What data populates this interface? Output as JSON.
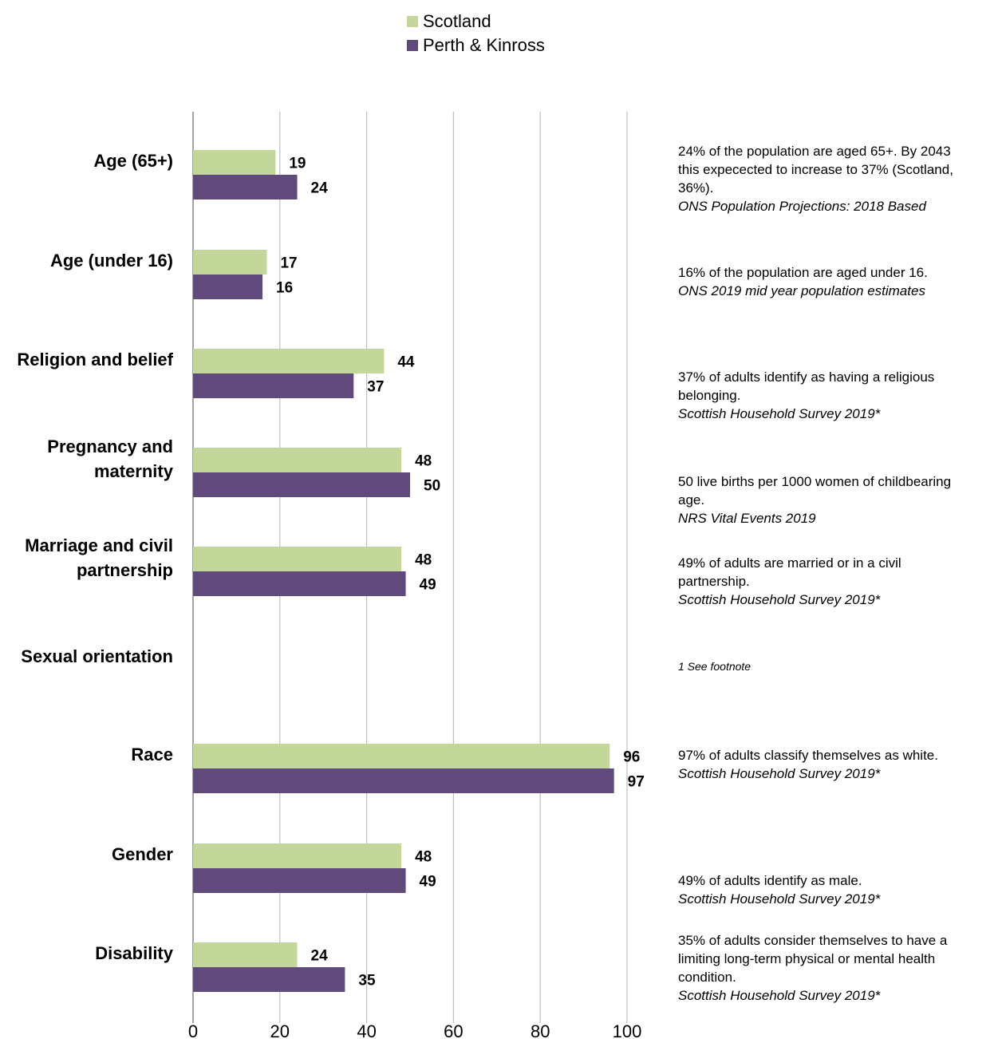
{
  "chart_data": {
    "type": "bar",
    "orientation": "horizontal",
    "categories": [
      "Age (65+)",
      "Age (under 16)",
      "Religion and belief",
      "Pregnancy and maternity",
      "Marriage and civil partnership",
      "Sexual orientation",
      "Race",
      "Gender",
      "Disability"
    ],
    "series": [
      {
        "name": "Scotland",
        "color": "#c4d79b",
        "values": [
          19,
          17,
          44,
          48,
          48,
          null,
          96,
          48,
          24
        ]
      },
      {
        "name": "Perth & Kinross",
        "color": "#604a7b",
        "values": [
          24,
          16,
          37,
          50,
          49,
          null,
          97,
          49,
          35
        ]
      }
    ],
    "xlim": [
      0,
      100
    ],
    "xticks": [
      0,
      20,
      40,
      60,
      80,
      100
    ],
    "grid": true,
    "legend": "top-center",
    "title": "",
    "xlabel": "",
    "ylabel": ""
  },
  "category_labels": [
    [
      "Age (65+)"
    ],
    [
      "Age (under 16)"
    ],
    [
      "Religion and belief"
    ],
    [
      "Pregnancy and",
      "maternity"
    ],
    [
      "Marriage and civil",
      "partnership"
    ],
    [
      "Sexual orientation"
    ],
    [
      "Race"
    ],
    [
      "Gender"
    ],
    [
      "Disability"
    ]
  ],
  "notes": [
    {
      "lines": [
        "24% of the population are aged 65+. By 2043",
        "this expecected to increase to 37% (Scotland,",
        "36%)."
      ],
      "source": " ONS Population Projections: 2018 Based"
    },
    {
      "lines": [
        "16% of the population are aged under 16."
      ],
      "source": " ONS 2019 mid year population estimates"
    },
    {
      "lines": [
        "37% of adults identify as having a religious",
        "belonging."
      ],
      "source": "Scottish Household Survey 2019*"
    },
    {
      "lines": [
        "50 live births per 1000 women of childbearing",
        "age."
      ],
      "source": "NRS Vital Events 2019"
    },
    {
      "lines": [
        "49% of adults are married or in a civil",
        "partnership."
      ],
      "source": "Scottish Household Survey 2019*"
    },
    {
      "lines": [],
      "source": "1 See footnote",
      "small": true
    },
    {
      "lines": [
        "97% of adults classify themselves as white."
      ],
      "source": "Scottish Household Survey 2019*"
    },
    {
      "lines": [
        "49% of adults identify as male."
      ],
      "source": "Scottish Household Survey 2019*"
    },
    {
      "lines": [
        "35% of adults consider themselves to have a",
        "limiting long-term physical or mental health",
        "condition."
      ],
      "source": "Scottish Household Survey 2019*"
    }
  ]
}
